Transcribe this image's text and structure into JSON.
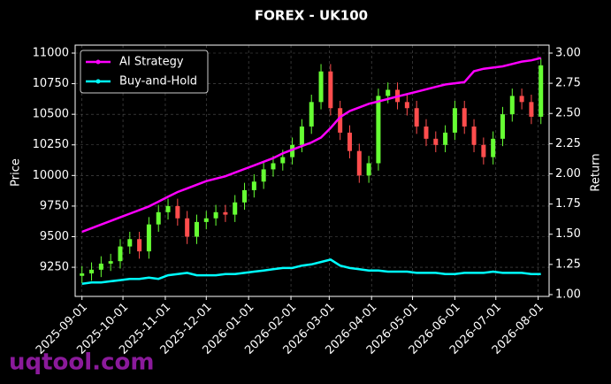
{
  "chart_data": {
    "type": "candlestick",
    "title": "FOREX - UK100",
    "y_label": "Price",
    "y2_label": "Return",
    "watermark": "uqtool.com",
    "up_color": "#66ff33",
    "down_color": "#ff4d4d",
    "grid": true,
    "legend": "upper left",
    "x": [
      "2025-09-01",
      "2025-09-08",
      "2025-09-15",
      "2025-09-22",
      "2025-09-29",
      "2025-10-06",
      "2025-10-13",
      "2025-10-20",
      "2025-10-27",
      "2025-11-03",
      "2025-11-10",
      "2025-11-17",
      "2025-11-24",
      "2025-12-01",
      "2025-12-08",
      "2025-12-15",
      "2025-12-22",
      "2025-12-29",
      "2026-01-05",
      "2026-01-12",
      "2026-01-19",
      "2026-01-26",
      "2026-02-02",
      "2026-02-09",
      "2026-02-16",
      "2026-02-23",
      "2026-03-02",
      "2026-03-09",
      "2026-03-16",
      "2026-03-23",
      "2026-03-30",
      "2026-04-06",
      "2026-04-13",
      "2026-04-20",
      "2026-04-27",
      "2026-05-04",
      "2026-05-11",
      "2026-05-18",
      "2026-05-25",
      "2026-06-01",
      "2026-06-08",
      "2026-06-15",
      "2026-06-22",
      "2026-06-29",
      "2026-07-06",
      "2026-07-13",
      "2026-07-20",
      "2026-07-27",
      "2026-08-03"
    ],
    "open": [
      9180,
      9200,
      9230,
      9280,
      9300,
      9420,
      9480,
      9380,
      9600,
      9700,
      9750,
      9650,
      9500,
      9620,
      9650,
      9700,
      9680,
      9780,
      9880,
      9950,
      10050,
      10100,
      10150,
      10250,
      10400,
      10600,
      10850,
      10550,
      10350,
      10200,
      10000,
      10100,
      10650,
      10700,
      10600,
      10550,
      10400,
      10300,
      10250,
      10350,
      10550,
      10400,
      10250,
      10150,
      10300,
      10500,
      10650,
      10600,
      10480
    ],
    "high": [
      9260,
      9290,
      9340,
      9360,
      9480,
      9540,
      9540,
      9660,
      9760,
      9810,
      9810,
      9710,
      9680,
      9710,
      9760,
      9760,
      9840,
      9940,
      10010,
      10110,
      10160,
      10210,
      10310,
      10460,
      10660,
      10910,
      10910,
      10610,
      10410,
      10260,
      10160,
      10710,
      10760,
      10760,
      10660,
      10610,
      10460,
      10360,
      10410,
      10610,
      10610,
      10460,
      10310,
      10360,
      10560,
      10710,
      10710,
      10660,
      10960
    ],
    "low": [
      9120,
      9140,
      9170,
      9220,
      9240,
      9360,
      9320,
      9320,
      9540,
      9640,
      9590,
      9440,
      9440,
      9560,
      9590,
      9620,
      9620,
      9720,
      9820,
      9890,
      9990,
      10040,
      10090,
      10190,
      10340,
      10540,
      10490,
      10290,
      10140,
      9940,
      9940,
      10040,
      10590,
      10540,
      10490,
      10340,
      10240,
      10190,
      10190,
      10290,
      10340,
      10190,
      10090,
      10090,
      10240,
      10440,
      10540,
      10420,
      10420
    ],
    "close": [
      9200,
      9230,
      9280,
      9300,
      9420,
      9480,
      9380,
      9600,
      9700,
      9750,
      9650,
      9500,
      9620,
      9650,
      9700,
      9680,
      9780,
      9880,
      9950,
      10050,
      10100,
      10150,
      10250,
      10400,
      10600,
      10850,
      10550,
      10350,
      10200,
      10000,
      10100,
      10650,
      10700,
      10600,
      10550,
      10400,
      10300,
      10250,
      10350,
      10550,
      10400,
      10250,
      10150,
      10300,
      10500,
      10650,
      10600,
      10480,
      10900
    ],
    "series": [
      {
        "name": "AI Strategy",
        "color": "#ff00ff",
        "axis": "y2",
        "values": [
          1.52,
          1.55,
          1.58,
          1.61,
          1.64,
          1.67,
          1.7,
          1.73,
          1.77,
          1.81,
          1.85,
          1.88,
          1.91,
          1.94,
          1.96,
          1.98,
          2.01,
          2.04,
          2.07,
          2.1,
          2.13,
          2.17,
          2.2,
          2.23,
          2.26,
          2.3,
          2.38,
          2.47,
          2.52,
          2.55,
          2.58,
          2.6,
          2.62,
          2.64,
          2.66,
          2.68,
          2.7,
          2.72,
          2.74,
          2.75,
          2.76,
          2.85,
          2.87,
          2.88,
          2.89,
          2.91,
          2.93,
          2.94,
          2.96
        ]
      },
      {
        "name": "Buy-and-Hold",
        "color": "#00ffff",
        "axis": "y2",
        "values": [
          1.09,
          1.1,
          1.1,
          1.11,
          1.12,
          1.13,
          1.13,
          1.14,
          1.13,
          1.16,
          1.17,
          1.18,
          1.16,
          1.16,
          1.16,
          1.17,
          1.17,
          1.18,
          1.19,
          1.2,
          1.21,
          1.22,
          1.22,
          1.24,
          1.25,
          1.27,
          1.29,
          1.24,
          1.22,
          1.21,
          1.2,
          1.2,
          1.19,
          1.19,
          1.19,
          1.18,
          1.18,
          1.18,
          1.17,
          1.17,
          1.18,
          1.18,
          1.18,
          1.19,
          1.18,
          1.18,
          1.18,
          1.17,
          1.17
        ]
      }
    ],
    "xlim": [
      "2025-08-27",
      "2026-08-09"
    ],
    "xticks": [
      "2025-09-01",
      "2025-10-01",
      "2025-11-01",
      "2025-12-01",
      "2026-01-01",
      "2026-02-01",
      "2026-03-01",
      "2026-04-01",
      "2026-05-01",
      "2026-06-01",
      "2026-07-01",
      "2026-08-01"
    ],
    "ylim": [
      9012,
      11065
    ],
    "yticks": [
      9250,
      9500,
      9750,
      10000,
      10250,
      10500,
      10750,
      11000
    ],
    "y2lim": [
      0.985,
      3.066
    ],
    "y2ticks": [
      {
        "value": 1,
        "label": "1.00"
      },
      {
        "value": 1.25,
        "label": "1.25"
      },
      {
        "value": 1.5,
        "label": "1.50"
      },
      {
        "value": 1.75,
        "label": "1.75"
      },
      {
        "value": 2,
        "label": "2.00"
      },
      {
        "value": 2.25,
        "label": "2.25"
      },
      {
        "value": 2.5,
        "label": "2.50"
      },
      {
        "value": 2.75,
        "label": "2.75"
      },
      {
        "value": 3,
        "label": "3.00"
      }
    ]
  }
}
